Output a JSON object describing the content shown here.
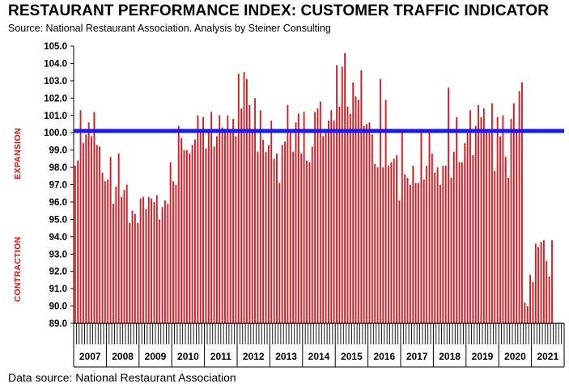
{
  "header": {
    "title": "RESTAURANT PERFORMANCE INDEX:  CUSTOMER TRAFFIC INDICATOR",
    "subtitle": "Source: National Restaurant Association.  Analysis by Steiner Consulting"
  },
  "footer": {
    "text": "Data source: National Restaurant Association"
  },
  "colors": {
    "bars": "#e8141c",
    "baseline": "#1a1aee",
    "side_labels": "#e01010"
  },
  "chart_data": {
    "type": "bar",
    "title": "RESTAURANT PERFORMANCE INDEX:  CUSTOMER TRAFFIC INDICATOR",
    "xlabel": "",
    "ylabel": "",
    "ylim": [
      89.0,
      105.0
    ],
    "y_ticks": [
      "89.0",
      "90.0",
      "91.0",
      "92.0",
      "93.0",
      "94.0",
      "95.0",
      "96.0",
      "97.0",
      "98.0",
      "99.0",
      "100.0",
      "101.0",
      "102.0",
      "103.0",
      "104.0",
      "105.0"
    ],
    "years": [
      "2007",
      "2008",
      "2009",
      "2010",
      "2011",
      "2012",
      "2013",
      "2014",
      "2015",
      "2016",
      "2017",
      "2018",
      "2019",
      "2020",
      "2021"
    ],
    "side_labels": {
      "upper": "EXPANSION",
      "lower": "CONTRACTION"
    },
    "reference_line": 100.1,
    "grid": false,
    "values": [
      98.1,
      98.4,
      101.3,
      99.4,
      99.9,
      100.6,
      99.8,
      101.2,
      99.3,
      99.2,
      97.7,
      97.2,
      97.3,
      98.6,
      95.9,
      96.9,
      98.8,
      96.3,
      96.7,
      97.0,
      94.8,
      95.5,
      95.3,
      94.8,
      96.2,
      96.3,
      95.6,
      96.3,
      96.2,
      96.0,
      96.4,
      95.0,
      95.7,
      96.1,
      95.9,
      98.3,
      97.2,
      97.0,
      100.4,
      99.7,
      99.0,
      99.0,
      98.8,
      99.3,
      99.6,
      101.0,
      100.0,
      100.9,
      99.1,
      100.1,
      101.2,
      99.2,
      99.8,
      101.0,
      100.3,
      100.0,
      101.0,
      100.0,
      100.8,
      99.8,
      103.4,
      101.4,
      103.5,
      103.1,
      101.6,
      100.1,
      102.0,
      98.9,
      101.3,
      99.6,
      98.9,
      99.3,
      100.7,
      98.5,
      98.8,
      97.1,
      99.3,
      99.5,
      101.6,
      100.2,
      98.9,
      100.6,
      101.1,
      98.8,
      101.2,
      98.4,
      98.3,
      99.2,
      101.2,
      101.4,
      101.8,
      99.8,
      100.0,
      100.7,
      101.3,
      100.7,
      103.9,
      101.5,
      103.8,
      104.6,
      101.5,
      101.1,
      102.9,
      102.1,
      101.9,
      103.6,
      100.4,
      100.5,
      100.6,
      99.9,
      98.2,
      98.0,
      103.1,
      98.0,
      101.9,
      98.1,
      98.3,
      98.5,
      98.7,
      96.1,
      100.0,
      97.6,
      97.4,
      97.0,
      98.1,
      97.1,
      97.1,
      100.0,
      97.3,
      98.1,
      100.1,
      98.8,
      97.7,
      98.0,
      97.0,
      98.1,
      98.1,
      102.6,
      97.4,
      98.9,
      100.9,
      98.3,
      98.3,
      99.4,
      100.0,
      101.3,
      98.7,
      100.4,
      101.6,
      100.9,
      101.4,
      100.2,
      100.1,
      101.7,
      97.8,
      100.9,
      99.8,
      101.0,
      98.6,
      97.4,
      100.8,
      101.7,
      100.1,
      102.4,
      102.9,
      90.2,
      90.0,
      91.8,
      91.4,
      93.6,
      93.4,
      93.7,
      93.8,
      92.6,
      91.7,
      93.8
    ]
  }
}
